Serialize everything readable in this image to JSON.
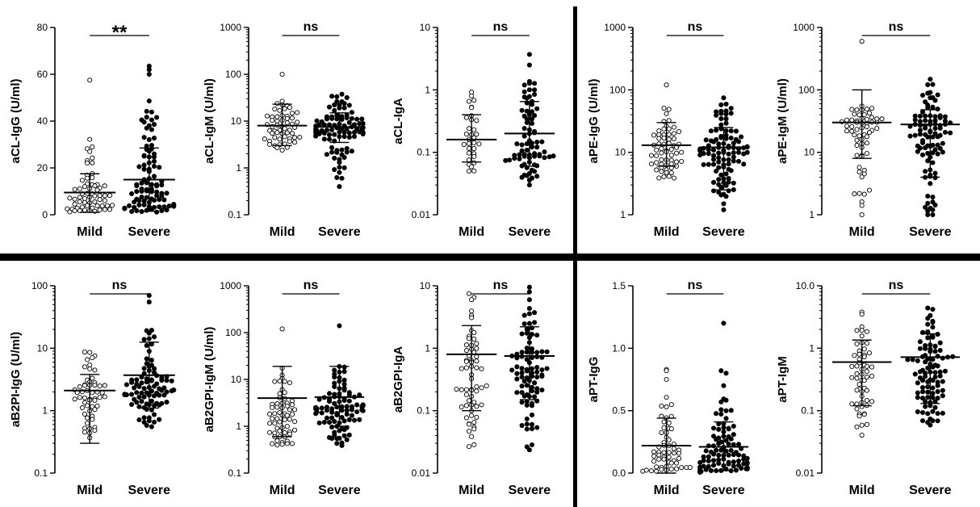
{
  "colors": {
    "mild_fill": "#ffffff",
    "severe_fill": "#000000",
    "stroke": "#000000"
  },
  "chart_data": [
    {
      "type": "scatter",
      "ylabel": "aCL-IgG (U/ml)",
      "scale": "linear",
      "ylim": [
        0,
        80
      ],
      "yticks": [
        0,
        20,
        40,
        60,
        80
      ],
      "ytick_labels": [
        "0",
        "20",
        "40",
        "60",
        "80"
      ],
      "categories": [
        "Mild",
        "Severe"
      ],
      "significance": "**",
      "series": [
        {
          "name": "Mild",
          "mean": 9.5,
          "err_low": 1,
          "err_high": 17.5,
          "n": 60,
          "q": [
            1,
            3,
            6,
            9,
            14,
            30
          ],
          "outliers": [
            57.5,
            29,
            27
          ]
        },
        {
          "name": "Severe",
          "mean": 15,
          "err_low": 1.5,
          "err_high": 28.5,
          "n": 95,
          "q": [
            1,
            4,
            8,
            14,
            28,
            45
          ],
          "outliers": [
            63.5,
            62,
            60
          ]
        }
      ]
    },
    {
      "type": "scatter",
      "ylabel": "aCL-IgM (U/ml)",
      "scale": "log",
      "ylim": [
        0.1,
        1000
      ],
      "yticks": [
        0.1,
        1,
        10,
        100,
        1000
      ],
      "ytick_labels": [
        "0.1",
        "1",
        "10",
        "100",
        "1000"
      ],
      "categories": [
        "Mild",
        "Severe"
      ],
      "significance": "ns",
      "series": [
        {
          "name": "Mild",
          "mean": 8,
          "err_low": 3,
          "err_high": 23,
          "n": 55,
          "q": [
            2.2,
            4,
            6,
            9,
            14,
            26
          ],
          "outliers": [
            100
          ]
        },
        {
          "name": "Severe",
          "mean": 7.5,
          "err_low": 3.5,
          "err_high": 15,
          "n": 95,
          "q": [
            0.9,
            4,
            6,
            8,
            12,
            35
          ],
          "outliers": [
            0.4,
            0.6,
            0.8
          ]
        }
      ]
    },
    {
      "type": "scatter",
      "ylabel": "aCL-IgA",
      "scale": "log",
      "ylim": [
        0.01,
        10
      ],
      "yticks": [
        0.01,
        0.1,
        1,
        10
      ],
      "ytick_labels": [
        "0.01",
        "0.1",
        "1",
        "10"
      ],
      "categories": [
        "Mild",
        "Severe"
      ],
      "significance": "ns",
      "series": [
        {
          "name": "Mild",
          "mean": 0.16,
          "err_low": 0.07,
          "err_high": 0.4,
          "n": 32,
          "q": [
            0.05,
            0.08,
            0.13,
            0.2,
            0.45,
            0.9
          ],
          "outliers": []
        },
        {
          "name": "Severe",
          "mean": 0.2,
          "err_low": 0.06,
          "err_high": 0.65,
          "n": 75,
          "q": [
            0.04,
            0.07,
            0.1,
            0.2,
            0.5,
            1.5
          ],
          "outliers": [
            3.7,
            2.5,
            0.03
          ]
        }
      ]
    },
    {
      "type": "scatter",
      "ylabel": "aPE-IgG (U/ml)",
      "scale": "log",
      "ylim": [
        1,
        1000
      ],
      "yticks": [
        1,
        10,
        100,
        1000
      ],
      "ytick_labels": [
        "1",
        "10",
        "100",
        "1000"
      ],
      "categories": [
        "Mild",
        "Severe"
      ],
      "significance": "ns",
      "series": [
        {
          "name": "Mild",
          "mean": 13,
          "err_low": 6,
          "err_high": 30,
          "n": 60,
          "q": [
            3.5,
            6,
            9,
            13,
            20,
            45
          ],
          "outliers": [
            120
          ]
        },
        {
          "name": "Severe",
          "mean": 12,
          "err_low": 2.5,
          "err_high": 25,
          "n": 100,
          "q": [
            2,
            5,
            9,
            12,
            20,
            60
          ],
          "outliers": [
            1.2,
            1.5
          ]
        }
      ]
    },
    {
      "type": "scatter",
      "ylabel": "aPE-IgM (U/ml)",
      "scale": "log",
      "ylim": [
        1,
        1000
      ],
      "yticks": [
        1,
        10,
        100,
        1000
      ],
      "ytick_labels": [
        "1",
        "10",
        "100",
        "1000"
      ],
      "categories": [
        "Mild",
        "Severe"
      ],
      "significance": "ns",
      "series": [
        {
          "name": "Mild",
          "mean": 30,
          "err_low": 8,
          "err_high": 100,
          "n": 60,
          "q": [
            1.3,
            8,
            18,
            28,
            35,
            60
          ],
          "outliers": [
            600
          ]
        },
        {
          "name": "Severe",
          "mean": 28,
          "err_low": 4,
          "err_high": 48,
          "n": 95,
          "q": [
            1.1,
            8,
            17,
            26,
            40,
            120
          ],
          "outliers": [
            1.2,
            1.6
          ]
        }
      ]
    },
    {
      "type": "scatter",
      "ylabel": "aB2PI-IgG (U/ml)",
      "scale": "log",
      "ylim": [
        0.1,
        100
      ],
      "yticks": [
        0.1,
        1,
        10,
        100
      ],
      "ytick_labels": [
        "0.1",
        "1",
        "10",
        "100"
      ],
      "categories": [
        "Mild",
        "Severe"
      ],
      "significance": "ns",
      "series": [
        {
          "name": "Mild",
          "mean": 2.1,
          "err_low": 0.3,
          "err_high": 3.8,
          "n": 55,
          "q": [
            0.35,
            0.9,
            1.5,
            2.1,
            3,
            11
          ],
          "outliers": []
        },
        {
          "name": "Severe",
          "mean": 3.7,
          "err_low": 1.1,
          "err_high": 12.5,
          "n": 90,
          "q": [
            0.55,
            1.3,
            1.9,
            2.5,
            3.8,
            20
          ],
          "outliers": [
            70,
            55
          ]
        }
      ]
    },
    {
      "type": "scatter",
      "ylabel": "aB2GPI-IgM (U/ml)",
      "scale": "log",
      "ylim": [
        0.1,
        1000
      ],
      "yticks": [
        0.1,
        1,
        10,
        100,
        1000
      ],
      "ytick_labels": [
        "0.1",
        "1",
        "10",
        "100",
        "1000"
      ],
      "categories": [
        "Mild",
        "Severe"
      ],
      "significance": "ns",
      "series": [
        {
          "name": "Mild",
          "mean": 4,
          "err_low": 0.6,
          "err_high": 19,
          "n": 60,
          "q": [
            0.35,
            0.7,
            1.2,
            2,
            4,
            16
          ],
          "outliers": [
            120
          ]
        },
        {
          "name": "Severe",
          "mean": 4.2,
          "err_low": 1,
          "err_high": 19,
          "n": 95,
          "q": [
            0.4,
            1.2,
            2,
            2.8,
            5,
            15
          ],
          "outliers": [
            140
          ]
        }
      ]
    },
    {
      "type": "scatter",
      "ylabel": "aB2GPI-IgA",
      "scale": "log",
      "ylim": [
        0.01,
        10
      ],
      "yticks": [
        0.01,
        0.1,
        1,
        10
      ],
      "ytick_labels": [
        "0.01",
        "0.1",
        "1",
        "10"
      ],
      "categories": [
        "Mild",
        "Severe"
      ],
      "significance": "ns",
      "series": [
        {
          "name": "Mild",
          "mean": 0.8,
          "err_low": 0.1,
          "err_high": 2.3,
          "n": 60,
          "q": [
            0.03,
            0.1,
            0.2,
            0.45,
            1,
            3
          ],
          "outliers": [
            7.5,
            6.5,
            6
          ]
        },
        {
          "name": "Severe",
          "mean": 0.75,
          "err_low": 0.15,
          "err_high": 2.2,
          "n": 85,
          "q": [
            0.03,
            0.15,
            0.3,
            0.5,
            1,
            4
          ],
          "outliers": [
            9.5,
            8,
            6
          ]
        }
      ]
    },
    {
      "type": "scatter",
      "ylabel": "aPT-IgG",
      "scale": "linear",
      "ylim": [
        0,
        1.5
      ],
      "yticks": [
        0,
        0.5,
        1,
        1.5
      ],
      "ytick_labels": [
        "0.0",
        "0.5",
        "1.0",
        "1.5"
      ],
      "categories": [
        "Mild",
        "Severe"
      ],
      "significance": "ns",
      "series": [
        {
          "name": "Mild",
          "mean": 0.22,
          "err_low": 0,
          "err_high": 0.44,
          "n": 55,
          "q": [
            0.01,
            0.05,
            0.12,
            0.2,
            0.35,
            0.6
          ],
          "outliers": [
            0.83,
            0.82,
            0.75
          ]
        },
        {
          "name": "Severe",
          "mean": 0.21,
          "err_low": 0.02,
          "err_high": 0.41,
          "n": 95,
          "q": [
            0.01,
            0.04,
            0.1,
            0.18,
            0.3,
            0.55
          ],
          "outliers": [
            1.2,
            0.82,
            0.8,
            0.7
          ]
        }
      ]
    },
    {
      "type": "scatter",
      "ylabel": "aPT-IgM",
      "scale": "log",
      "ylim": [
        0.01,
        10
      ],
      "yticks": [
        0.01,
        0.1,
        1,
        10
      ],
      "ytick_labels": [
        "0.01",
        "0.1",
        "1",
        "10.0"
      ],
      "categories": [
        "Mild",
        "Severe"
      ],
      "significance": "ns",
      "series": [
        {
          "name": "Mild",
          "mean": 0.6,
          "err_low": 0.12,
          "err_high": 1.35,
          "n": 55,
          "q": [
            0.05,
            0.12,
            0.25,
            0.45,
            0.8,
            2.5
          ],
          "outliers": [
            3.8,
            3.5
          ]
        },
        {
          "name": "Severe",
          "mean": 0.72,
          "err_low": 0.13,
          "err_high": 1.7,
          "n": 95,
          "q": [
            0.07,
            0.15,
            0.3,
            0.55,
            1,
            3
          ],
          "outliers": [
            4.4,
            4.2
          ]
        }
      ]
    }
  ]
}
